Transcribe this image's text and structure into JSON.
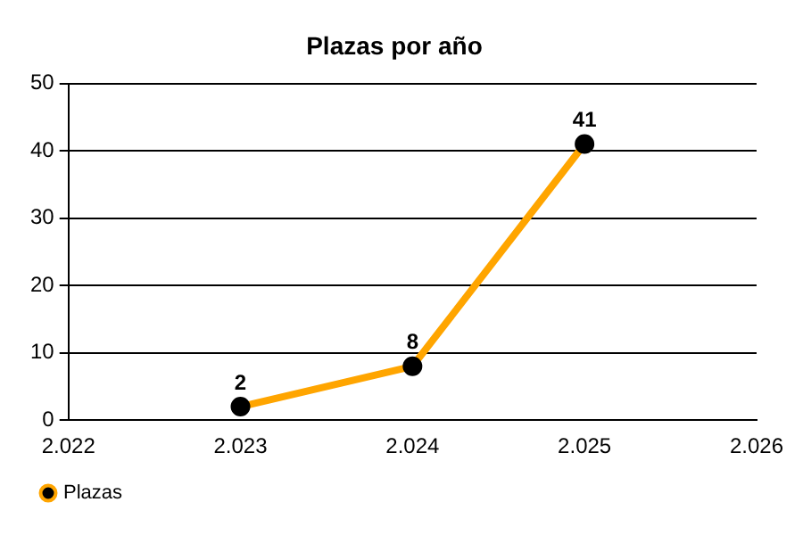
{
  "chart_data": {
    "type": "line",
    "title": "Plazas por año",
    "x": [
      2023,
      2024,
      2025
    ],
    "series": [
      {
        "name": "Plazas",
        "color": "#ffa500",
        "values": [
          2,
          8,
          41
        ]
      }
    ],
    "xlim": [
      2022,
      2026
    ],
    "xticks": [
      {
        "value": 2022,
        "label": "2.022"
      },
      {
        "value": 2023,
        "label": "2.023"
      },
      {
        "value": 2024,
        "label": "2.024"
      },
      {
        "value": 2025,
        "label": "2.025"
      },
      {
        "value": 2026,
        "label": "2.026"
      }
    ],
    "ylim": [
      0,
      50
    ],
    "yticks": [
      0,
      10,
      20,
      30,
      40,
      50
    ],
    "grid": "y",
    "legend": "bottom left",
    "marker": "circle",
    "data_labels": true
  }
}
